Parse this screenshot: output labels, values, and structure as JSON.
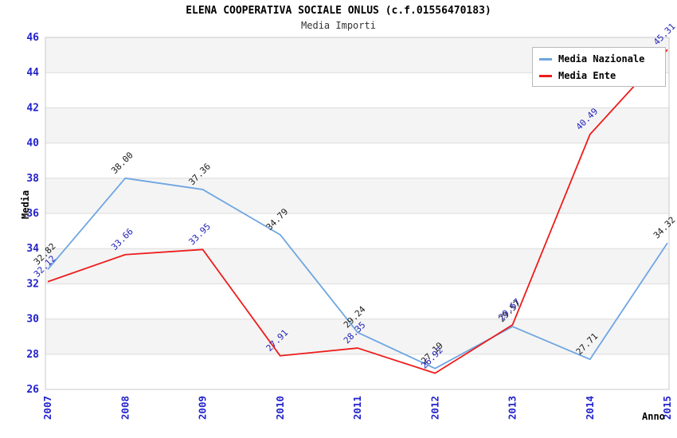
{
  "chart_data": {
    "type": "line",
    "title": "ELENA COOPERATIVA SOCIALE ONLUS (c.f.01556470183)",
    "subtitle": "Media Importi",
    "xlabel": "Anno",
    "ylabel": "Media",
    "categories": [
      "2007",
      "2008",
      "2009",
      "2010",
      "2011",
      "2012",
      "2013",
      "2014",
      "2015"
    ],
    "ylim": [
      26,
      46
    ],
    "ytick_step": 2,
    "grid": true,
    "legend_position": "top-right",
    "series": [
      {
        "name": "Media Nazionale",
        "color": "#6ea6e2",
        "label_color": "#1a1a1a",
        "values": [
          32.82,
          38.0,
          37.36,
          34.79,
          29.24,
          27.19,
          29.57,
          27.71,
          34.32
        ]
      },
      {
        "name": "Media Ente",
        "color": "#ee1c1c",
        "label_color": "#2222bb",
        "values": [
          32.12,
          33.66,
          33.95,
          27.91,
          28.35,
          26.92,
          29.67,
          40.49,
          45.31
        ]
      }
    ]
  },
  "style": {
    "band_color": "#f4f4f4",
    "grid_color": "#dcdcdc",
    "border_color": "#c9c9c9",
    "tick_label_color": "#2222cc"
  }
}
